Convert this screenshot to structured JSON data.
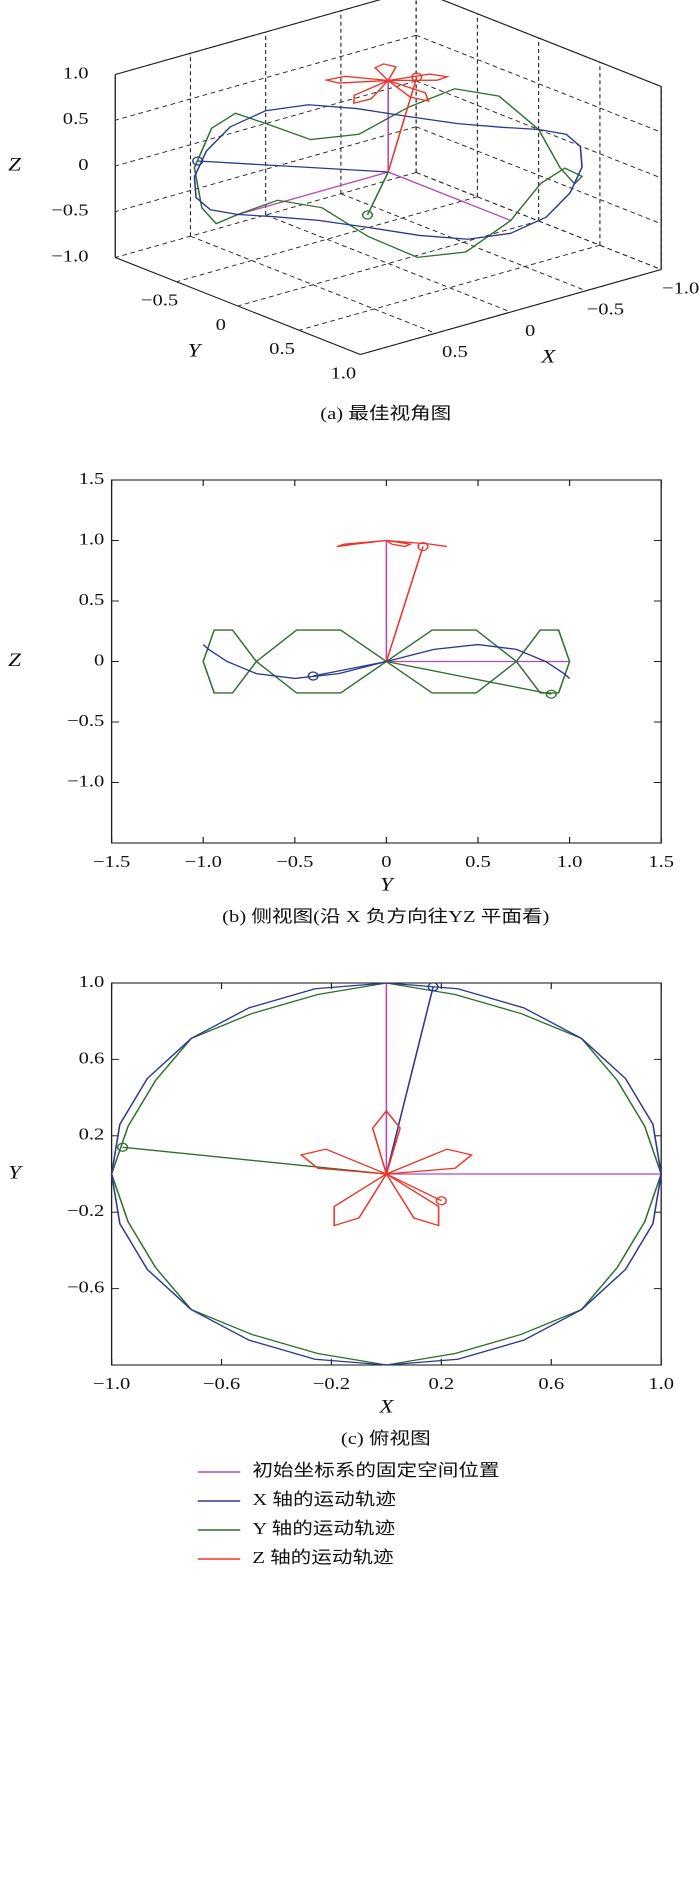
{
  "legend": [
    {
      "name": "初始坐标系的固定空间位置",
      "color": "#b44ab4"
    },
    {
      "name": "X 轴的运动轨迹",
      "color": "#2b3990"
    },
    {
      "name": "Y 轴的运动轨迹",
      "color": "#2f6f2f"
    },
    {
      "name": "Z 轴的运动轨迹",
      "color": "#ec3528"
    }
  ],
  "chart_data": [
    {
      "type": "line3d",
      "caption": "(a) 最佳视角图",
      "xlabel": "X",
      "ylabel": "Y",
      "zlabel": "Z",
      "xlim": [
        -1,
        1
      ],
      "ylim": [
        -1,
        1
      ],
      "zlim": [
        -1,
        1
      ],
      "xticks": [
        {
          "value": -1,
          "label": "−1.0"
        },
        {
          "value": -0.5,
          "label": "−0.5"
        },
        0,
        0.5
      ],
      "yticks": [
        {
          "value": -0.5,
          "label": "−0.5"
        },
        0,
        0.5,
        {
          "value": 1,
          "label": "1.0"
        }
      ],
      "zticks": [
        {
          "value": -1,
          "label": "−1.0"
        },
        {
          "value": -0.5,
          "label": "−0.5"
        },
        0,
        0.5,
        {
          "value": 1,
          "label": "1.0"
        }
      ],
      "grid": true,
      "traces": [
        {
          "x": [
            0,
            1,
            null,
            0,
            0,
            null,
            0,
            0
          ],
          "y": [
            0,
            0,
            null,
            0,
            1,
            null,
            0,
            0
          ],
          "z": [
            0,
            0,
            null,
            0,
            0,
            null,
            0,
            1
          ]
        },
        {
          "x": [
            1,
            0.97,
            0.87,
            0.71,
            0.5,
            0.26,
            0,
            -0.26,
            -0.5,
            -0.71,
            -0.87,
            -0.97,
            -1,
            -0.97,
            -0.87,
            -0.71,
            -0.5,
            -0.26,
            0,
            0.26,
            0.5,
            0.71,
            0.87,
            0.97,
            1,
            null,
            0,
            0.9
          ],
          "y": [
            0,
            0.26,
            0.5,
            0.71,
            0.87,
            0.97,
            1,
            0.97,
            0.87,
            0.71,
            0.5,
            0.26,
            0,
            -0.26,
            -0.5,
            -0.71,
            -0.87,
            -0.97,
            -1,
            -0.97,
            -0.87,
            -0.71,
            -0.5,
            -0.26,
            0,
            null,
            0,
            -0.45
          ],
          "z": [
            0,
            0.1,
            0.14,
            0.1,
            0,
            -0.1,
            -0.14,
            -0.1,
            0,
            0.1,
            0.14,
            0.1,
            0,
            -0.1,
            -0.14,
            -0.1,
            0,
            0.1,
            0.14,
            0.1,
            0,
            -0.1,
            -0.14,
            -0.1,
            0,
            null,
            0,
            0.3
          ]
        },
        {
          "x": [
            1,
            0.94,
            0.84,
            0.71,
            0.49,
            0.25,
            0,
            -0.25,
            -0.49,
            -0.71,
            -0.84,
            -0.94,
            -1,
            -0.94,
            -0.84,
            -0.71,
            -0.49,
            -0.25,
            0,
            0.25,
            0.49,
            0.71,
            0.84,
            0.94,
            1,
            null,
            0,
            0.26
          ],
          "y": [
            0,
            0.25,
            0.49,
            0.71,
            0.84,
            0.94,
            1,
            0.94,
            0.84,
            0.71,
            0.49,
            0.25,
            0,
            -0.25,
            -0.49,
            -0.71,
            -0.84,
            -0.94,
            -1,
            -0.94,
            -0.84,
            -0.71,
            -0.49,
            -0.25,
            0,
            null,
            0,
            0.15
          ],
          "z": [
            0,
            0.26,
            0.26,
            0,
            -0.26,
            -0.26,
            0,
            0.26,
            0.26,
            0,
            -0.26,
            -0.26,
            0,
            0.26,
            0.26,
            0,
            -0.26,
            -0.26,
            0,
            0.26,
            0.26,
            0,
            -0.26,
            -0.26,
            0,
            null,
            0,
            -0.27
          ]
        },
        {
          "x": [
            0,
            0.05,
            0,
            -0.05,
            0,
            -0.22,
            -0.31,
            -0.25,
            0,
            -0.19,
            -0.19,
            -0.1,
            0,
            0.1,
            0.19,
            0.19,
            0,
            0.25,
            0.31,
            0.22,
            0,
            null,
            0,
            -0.19
          ],
          "y": [
            0,
            0.24,
            0.33,
            0.24,
            0,
            0.13,
            0.1,
            0.03,
            0,
            -0.17,
            -0.27,
            -0.23,
            0,
            -0.23,
            -0.27,
            -0.17,
            0,
            0.03,
            0.1,
            0.13,
            0,
            null,
            0,
            0
          ],
          "z": [
            1,
            0.97,
            0.95,
            0.97,
            1,
            0.97,
            0.95,
            0.97,
            1,
            0.97,
            0.95,
            0.97,
            1,
            0.97,
            0.95,
            0.97,
            1,
            0.97,
            0.95,
            0.97,
            1,
            null,
            0,
            0.95
          ]
        }
      ]
    },
    {
      "type": "line",
      "caption": "(b) 侧视图(沿 X 负方向往YZ 平面看)",
      "xlabel": "Y",
      "ylabel": "Z",
      "xlim": [
        -1.5,
        1.5
      ],
      "ylim": [
        -1.5,
        1.5
      ],
      "xticks": [
        {
          "value": -1.5,
          "label": "−1.5"
        },
        {
          "value": -1,
          "label": "−1.0"
        },
        {
          "value": -0.5,
          "label": "−0.5"
        },
        0,
        0.5,
        {
          "value": 1,
          "label": "1.0"
        },
        1.5
      ],
      "yticks": [
        {
          "value": -1,
          "label": "−1.0"
        },
        {
          "value": -0.5,
          "label": "−0.5"
        },
        0,
        0.5,
        {
          "value": 1,
          "label": "1.0"
        },
        1.5
      ],
      "traces": [
        {
          "x": [
            0,
            1,
            null,
            0,
            0
          ],
          "y": [
            0,
            0,
            null,
            0,
            1
          ]
        },
        {
          "x": [
            0,
            0.26,
            0.5,
            0.71,
            0.87,
            0.97,
            1,
            0.97,
            0.87,
            0.71,
            0.5,
            0.26,
            0,
            -0.26,
            -0.5,
            -0.71,
            -0.87,
            -0.97,
            -1,
            -0.97,
            -0.87,
            -0.71,
            -0.5,
            -0.26,
            0,
            null,
            0,
            -0.4
          ],
          "y": [
            0,
            0.1,
            0.14,
            0.1,
            0,
            -0.1,
            -0.14,
            -0.1,
            0,
            0.1,
            0.14,
            0.1,
            0,
            -0.1,
            -0.14,
            -0.1,
            0,
            0.1,
            0.14,
            0.1,
            0,
            -0.1,
            -0.14,
            -0.1,
            0,
            null,
            0,
            -0.12
          ]
        },
        {
          "x": [
            0,
            0.25,
            0.49,
            0.71,
            0.84,
            0.94,
            1,
            0.94,
            0.84,
            0.71,
            0.49,
            0.25,
            0,
            -0.25,
            -0.49,
            -0.71,
            -0.84,
            -0.94,
            -1,
            -0.94,
            -0.84,
            -0.71,
            -0.49,
            -0.25,
            0,
            null,
            0,
            0.9
          ],
          "y": [
            0,
            0.26,
            0.26,
            0,
            -0.26,
            -0.26,
            0,
            0.26,
            0.26,
            0,
            -0.26,
            -0.26,
            0,
            0.26,
            0.26,
            0,
            -0.26,
            -0.26,
            0,
            0.26,
            0.26,
            0,
            -0.26,
            -0.26,
            0,
            null,
            0,
            -0.27
          ]
        },
        {
          "x": [
            0,
            0.24,
            0.33,
            0.24,
            0,
            0.13,
            0.1,
            0.03,
            0,
            -0.17,
            -0.27,
            -0.23,
            0,
            -0.23,
            -0.27,
            -0.17,
            0,
            0.03,
            0.1,
            0.13,
            0,
            null,
            0,
            0.2
          ],
          "y": [
            1,
            0.97,
            0.95,
            0.97,
            1,
            0.97,
            0.95,
            0.97,
            1,
            0.97,
            0.95,
            0.97,
            1,
            0.97,
            0.95,
            0.97,
            1,
            0.97,
            0.95,
            0.97,
            1,
            null,
            0,
            0.95
          ]
        }
      ]
    },
    {
      "type": "line",
      "caption": "(c) 俯视图",
      "xlabel": "X",
      "ylabel": "Y",
      "xlim": [
        -1,
        1
      ],
      "ylim": [
        -1,
        1
      ],
      "xticks": [
        {
          "value": -1,
          "label": "−1.0"
        },
        {
          "value": -0.6,
          "label": "−0.6"
        },
        {
          "value": -0.2,
          "label": "−0.2"
        },
        0.2,
        0.6,
        {
          "value": 1,
          "label": "1.0"
        }
      ],
      "yticks": [
        {
          "value": 1,
          "label": "1.0"
        },
        0.6,
        0.2,
        {
          "value": -0.2,
          "label": "−0.2"
        },
        {
          "value": -0.6,
          "label": "−0.6"
        }
      ],
      "traces": [
        {
          "x": [
            0,
            1,
            null,
            0,
            0
          ],
          "y": [
            0,
            0,
            null,
            0,
            1
          ]
        },
        {
          "x": [
            1,
            0.97,
            0.87,
            0.71,
            0.5,
            0.26,
            0,
            -0.26,
            -0.5,
            -0.71,
            -0.87,
            -0.97,
            -1,
            -0.97,
            -0.87,
            -0.71,
            -0.5,
            -0.26,
            0,
            0.26,
            0.5,
            0.71,
            0.87,
            0.97,
            1,
            null,
            0,
            0.17
          ],
          "y": [
            0,
            0.26,
            0.5,
            0.71,
            0.87,
            0.97,
            1,
            0.97,
            0.87,
            0.71,
            0.5,
            0.26,
            0,
            -0.26,
            -0.5,
            -0.71,
            -0.87,
            -0.97,
            -1,
            -0.97,
            -0.87,
            -0.71,
            -0.5,
            -0.26,
            0,
            null,
            0,
            0.98
          ]
        },
        {
          "x": [
            1,
            0.94,
            0.84,
            0.71,
            0.49,
            0.25,
            0,
            -0.25,
            -0.49,
            -0.71,
            -0.84,
            -0.94,
            -1,
            -0.94,
            -0.84,
            -0.71,
            -0.49,
            -0.25,
            0,
            0.25,
            0.49,
            0.71,
            0.84,
            0.94,
            1,
            null,
            0,
            -0.96
          ],
          "y": [
            0,
            0.25,
            0.49,
            0.71,
            0.84,
            0.94,
            1,
            0.94,
            0.84,
            0.71,
            0.49,
            0.25,
            0,
            -0.25,
            -0.49,
            -0.71,
            -0.84,
            -0.94,
            -1,
            -0.94,
            -0.84,
            -0.71,
            -0.49,
            -0.25,
            0,
            null,
            0,
            0.14
          ]
        },
        {
          "x": [
            0,
            0.05,
            0,
            -0.05,
            0,
            -0.22,
            -0.31,
            -0.25,
            0,
            -0.19,
            -0.19,
            -0.1,
            0,
            0.1,
            0.19,
            0.19,
            0,
            0.25,
            0.31,
            0.22,
            0,
            null,
            0,
            0.2
          ],
          "y": [
            0,
            0.24,
            0.33,
            0.24,
            0,
            0.13,
            0.1,
            0.03,
            0,
            -0.17,
            -0.27,
            -0.23,
            0,
            -0.23,
            -0.27,
            -0.17,
            0,
            0.03,
            0.1,
            0.13,
            0,
            null,
            0,
            -0.14
          ]
        }
      ]
    }
  ]
}
